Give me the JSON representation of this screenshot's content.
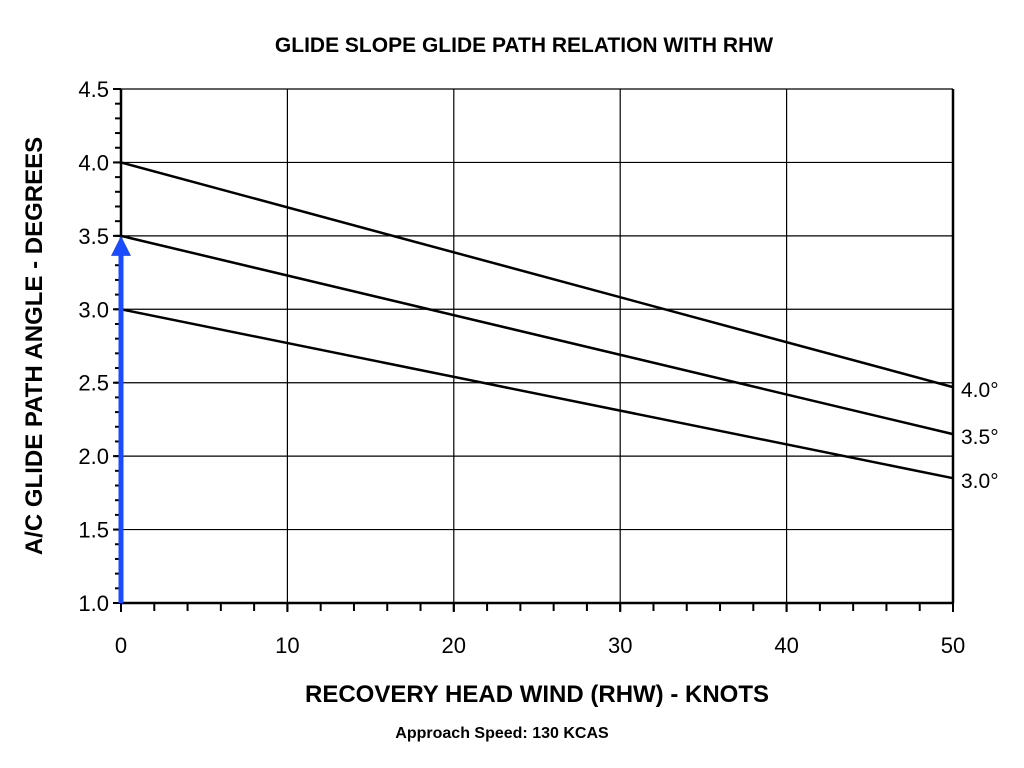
{
  "chart_data": {
    "type": "line",
    "title": "GLIDE SLOPE GLIDE PATH RELATION WITH RHW",
    "xlabel": "RECOVERY HEAD WIND (RHW) - KNOTS",
    "ylabel": "A/C GLIDE PATH ANGLE - DEGREES",
    "note": "Approach Speed: 130 KCAS",
    "xlim": [
      0,
      50
    ],
    "ylim": [
      1.0,
      4.5
    ],
    "grid": true,
    "xticks": [
      "0",
      "10",
      "20",
      "30",
      "40",
      "50"
    ],
    "yticks": [
      "1.0",
      "1.5",
      "2.0",
      "2.5",
      "3.0",
      "3.5",
      "4.0",
      "4.5"
    ],
    "series": [
      {
        "name": "4.0°",
        "x": [
          0,
          50
        ],
        "y": [
          4.0,
          2.47
        ]
      },
      {
        "name": "3.5°",
        "x": [
          0,
          50
        ],
        "y": [
          3.5,
          2.15
        ]
      },
      {
        "name": "3.0°",
        "x": [
          0,
          50
        ],
        "y": [
          3.0,
          1.85
        ]
      }
    ],
    "annotation": {
      "type": "arrow",
      "x": 0,
      "y_from": 1.0,
      "y_to": 3.5,
      "color": "#1a4bff"
    }
  }
}
